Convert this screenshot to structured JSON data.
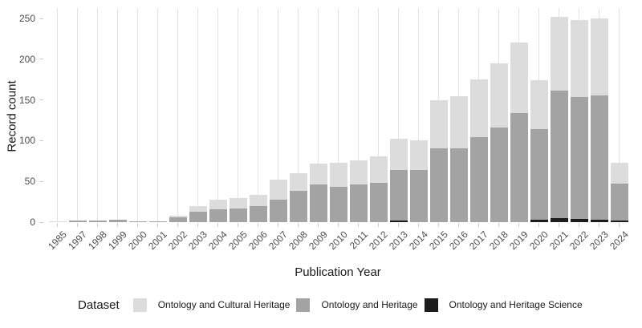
{
  "chart": {
    "y_axis": {
      "title": "Record count",
      "ticks": [
        0,
        50,
        100,
        150,
        200,
        250
      ]
    },
    "x_axis": {
      "title": "Publication Year"
    },
    "legend": {
      "title": "Dataset",
      "items": [
        {
          "label": "Ontology and Cultural Heritage",
          "color": "#dcdcdc"
        },
        {
          "label": "Ontology and Heritage",
          "color": "#a3a3a3"
        },
        {
          "label": "Ontology and Heritage Science",
          "color": "#1c1c1c"
        }
      ]
    }
  },
  "chart_data": {
    "type": "bar",
    "stacked": true,
    "title": "",
    "xlabel": "Publication Year",
    "ylabel": "Record count",
    "ylim": [
      0,
      250
    ],
    "grid": "vertical-only",
    "legend_position": "bottom",
    "categories": [
      "1985",
      "1997",
      "1998",
      "1999",
      "2000",
      "2001",
      "2002",
      "2003",
      "2004",
      "2005",
      "2006",
      "2007",
      "2008",
      "2009",
      "2010",
      "2011",
      "2012",
      "2013",
      "2014",
      "2015",
      "2016",
      "2017",
      "2018",
      "2019",
      "2020",
      "2021",
      "2022",
      "2023",
      "2024"
    ],
    "stack_bottom_to_top": [
      "Ontology and Heritage Science",
      "Ontology and Heritage",
      "Ontology and Cultural Heritage"
    ],
    "series": [
      {
        "name": "Ontology and Cultural Heritage",
        "color": "#dcdcdc",
        "values": [
          1,
          0,
          0,
          0,
          0,
          0,
          2,
          7,
          12,
          13,
          13,
          24,
          22,
          26,
          30,
          30,
          33,
          38,
          36,
          59,
          64,
          71,
          79,
          86,
          60,
          91,
          94,
          94,
          26
        ]
      },
      {
        "name": "Ontology and Heritage",
        "color": "#a3a3a3",
        "values": [
          0,
          2,
          2,
          3,
          1,
          1,
          6,
          13,
          16,
          17,
          20,
          28,
          38,
          46,
          43,
          46,
          48,
          62,
          64,
          91,
          91,
          104,
          116,
          134,
          111,
          156,
          150,
          153,
          45
        ]
      },
      {
        "name": "Ontology and Heritage Science",
        "color": "#1c1c1c",
        "values": [
          0,
          0,
          0,
          0,
          0,
          0,
          0,
          0,
          0,
          0,
          0,
          0,
          0,
          0,
          0,
          0,
          0,
          2,
          0,
          0,
          0,
          0,
          0,
          0,
          3,
          5,
          4,
          3,
          2
        ]
      }
    ],
    "totals": [
      1,
      2,
      2,
      3,
      1,
      1,
      8,
      20,
      28,
      30,
      33,
      52,
      60,
      72,
      73,
      76,
      81,
      102,
      100,
      150,
      155,
      175,
      195,
      220,
      174,
      252,
      248,
      250,
      73
    ]
  }
}
